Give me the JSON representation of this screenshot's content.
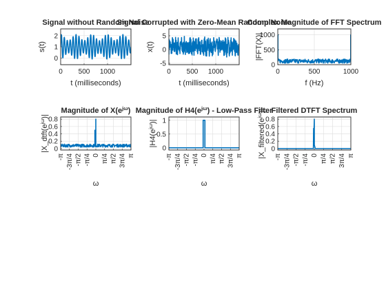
{
  "chart_data": [
    {
      "type": "line",
      "title": "Signal without Random Noise",
      "xlabel": "t (milliseconds)",
      "ylabel": "s(t)",
      "xlim": [
        0,
        1500
      ],
      "ylim": [
        -0.6,
        2.6
      ],
      "xticks": [
        0,
        500,
        1000
      ],
      "yticks": [
        0,
        1,
        2
      ],
      "grid": true,
      "color": "#0072BD",
      "series": [
        {
          "kind": "sine",
          "offset": 1,
          "amp": 1.1,
          "cycles": 24,
          "from": 0,
          "to": 1500
        }
      ]
    },
    {
      "type": "line",
      "title": "Signal Corrupted with Zero-Mean Random Noise",
      "xlabel": "t (milliseconds)",
      "ylabel": "x(t)",
      "xlim": [
        0,
        1500
      ],
      "ylim": [
        -5.5,
        7.5
      ],
      "xticks": [
        0,
        500,
        1000
      ],
      "yticks": [
        -5,
        0,
        5
      ],
      "grid": true,
      "color": "#0072BD",
      "series": [
        {
          "kind": "noise",
          "offset": 1,
          "amp": 1,
          "cycles": 24,
          "noise": 2.8,
          "from": 0,
          "to": 1500,
          "n": 400
        }
      ]
    },
    {
      "type": "line",
      "title": "Complex Magnitude of FFT Spectrum",
      "xlabel": "f (Hz)",
      "ylabel": "|FFT(X)|",
      "xlim": [
        0,
        1000
      ],
      "ylim": [
        0,
        1200
      ],
      "xticks": [
        0,
        500,
        1000
      ],
      "yticks": [
        0,
        500,
        1000
      ],
      "grid": true,
      "color": "#0072BD",
      "series": [
        {
          "kind": "spectrum",
          "base": 120,
          "jitter": 70,
          "from": 0,
          "to": 1000,
          "n": 260,
          "peaks": [
            {
              "x": 2,
              "y": 1000
            },
            {
              "x": 998,
              "y": 1000
            }
          ]
        }
      ]
    },
    {
      "type": "line",
      "title": "Magnitude of X(e^{jω})",
      "xlabel": "ω",
      "ylabel": "|X_dtft(e^{jω})|",
      "xlim": [
        -3.1416,
        3.1416
      ],
      "ylim": [
        -0.04,
        0.86
      ],
      "xtick_labels": [
        "-π",
        "-3π/4",
        "-π/2",
        "-π/4",
        "0",
        "π/4",
        "π/2",
        "3π/4",
        "π"
      ],
      "yticks": [
        0,
        0.2,
        0.4,
        0.6,
        0.8
      ],
      "grid": true,
      "color": "#0072BD",
      "series": [
        {
          "kind": "spectrum",
          "base": 0.08,
          "jitter": 0.04,
          "from": -3.1416,
          "to": 3.1416,
          "n": 300,
          "peaks": [
            {
              "x": -0.08,
              "y": 0.5
            },
            {
              "x": 0.0,
              "y": 0.8
            }
          ]
        }
      ]
    },
    {
      "type": "line",
      "title": "Magnitude of H4(e^{jω}) - Low-Pass Filter",
      "xlabel": "ω",
      "ylabel": "|H4(e^{jω})|",
      "xlim": [
        -3.1416,
        3.1416
      ],
      "ylim": [
        -0.08,
        1.12
      ],
      "xtick_labels": [
        "-π",
        "-3π/4",
        "-π/2",
        "-π/4",
        "0",
        "π/4",
        "π/2",
        "3π/4",
        "π"
      ],
      "yticks": [
        0,
        0.5,
        1
      ],
      "grid": true,
      "color": "#0072BD",
      "series": [
        {
          "kind": "rect",
          "low": 0,
          "high": 1,
          "from": -0.08,
          "to": 0.08,
          "xmin": -3.1416,
          "xmax": 3.1416
        }
      ]
    },
    {
      "type": "line",
      "title": "Filtered DTFT Spectrum",
      "xlabel": "ω",
      "ylabel": "|X_filtered(e^{jω})|",
      "xlim": [
        -3.1416,
        3.1416
      ],
      "ylim": [
        -0.04,
        0.86
      ],
      "xtick_labels": [
        "-π",
        "-3π/4",
        "-π/2",
        "-π/4",
        "0",
        "π/4",
        "π/2",
        "3π/4",
        "π"
      ],
      "yticks": [
        0,
        0.2,
        0.4,
        0.6,
        0.8
      ],
      "grid": true,
      "color": "#0072BD",
      "series": [
        {
          "kind": "filtered",
          "peaks": [
            {
              "x": -0.06,
              "y": 0.55
            },
            {
              "x": 0.0,
              "y": 0.8
            }
          ],
          "from": -0.08,
          "to": 0.08,
          "xmin": -3.1416,
          "xmax": 3.1416
        }
      ]
    }
  ]
}
